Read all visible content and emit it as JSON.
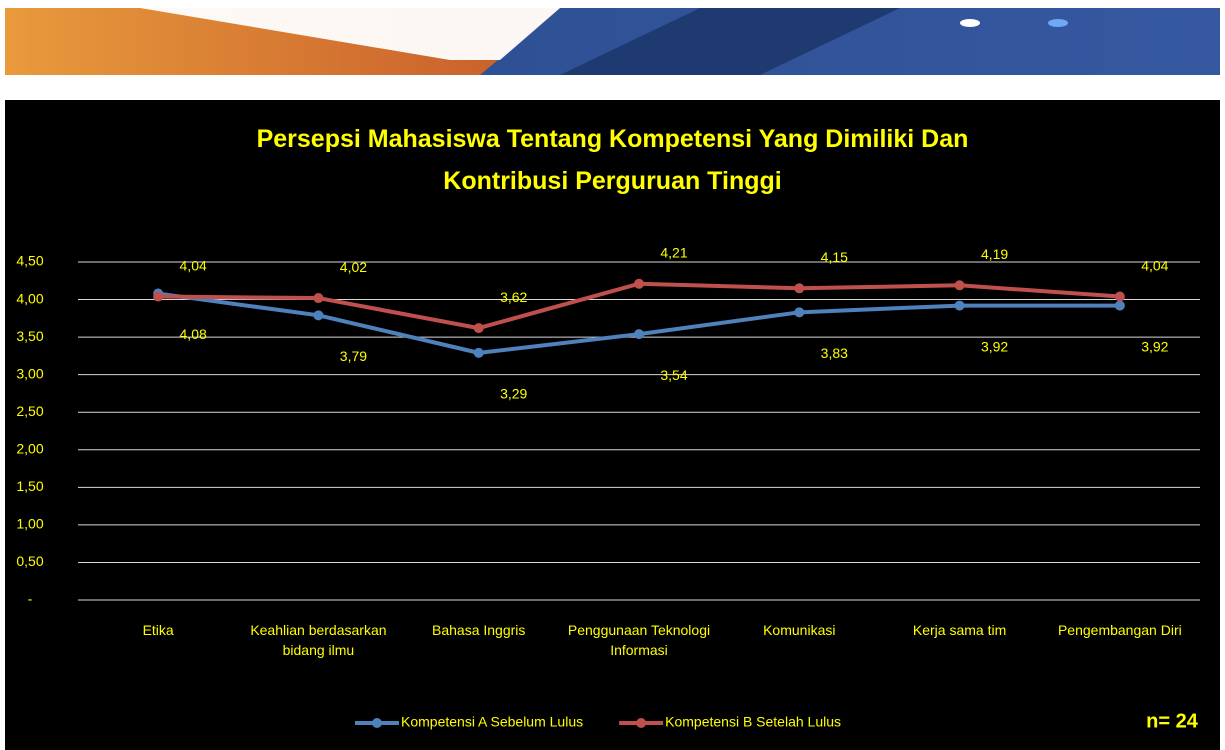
{
  "chart_data": {
    "type": "line",
    "title": [
      "Persepsi Mahasiswa Tentang Kompetensi Yang Dimiliki Dan",
      "Kontribusi Perguruan Tinggi"
    ],
    "categories": [
      "Etika",
      "Keahlian berdasarkan bidang ilmu",
      "Bahasa Inggris",
      "Penggunaan Teknologi Informasi",
      "Komunikasi",
      "Kerja sama tim",
      "Pengembangan Diri"
    ],
    "series": [
      {
        "name": "Kompetensi A Sebelum Lulus",
        "color": "#4f81bd",
        "values": [
          4.08,
          3.79,
          3.29,
          3.54,
          3.83,
          3.92,
          3.92
        ],
        "value_labels": [
          "4,08",
          "3,79",
          "3,29",
          "3,54",
          "3,83",
          "3,92",
          "3,92"
        ]
      },
      {
        "name": "Kompetensi B Setelah Lulus",
        "color": "#c0504d",
        "values": [
          4.04,
          4.02,
          3.62,
          4.21,
          4.15,
          4.19,
          4.04
        ],
        "value_labels": [
          "4,04",
          "4,02",
          "3,62",
          "4,21",
          "4,15",
          "4,19",
          "4,04"
        ]
      }
    ],
    "ylim": [
      0,
      4.5
    ],
    "yticks": [
      {
        "value": 0,
        "label": "-"
      },
      {
        "value": 0.5,
        "label": "0,50"
      },
      {
        "value": 1,
        "label": "1,00"
      },
      {
        "value": 1.5,
        "label": "1,50"
      },
      {
        "value": 2,
        "label": "2,00"
      },
      {
        "value": 2.5,
        "label": "2,50"
      },
      {
        "value": 3,
        "label": "3,00"
      },
      {
        "value": 3.5,
        "label": "3,50"
      },
      {
        "value": 4,
        "label": "4,00"
      },
      {
        "value": 4.5,
        "label": "4,50"
      }
    ],
    "grid": true,
    "legend": "bottom",
    "note": "n= 24"
  }
}
